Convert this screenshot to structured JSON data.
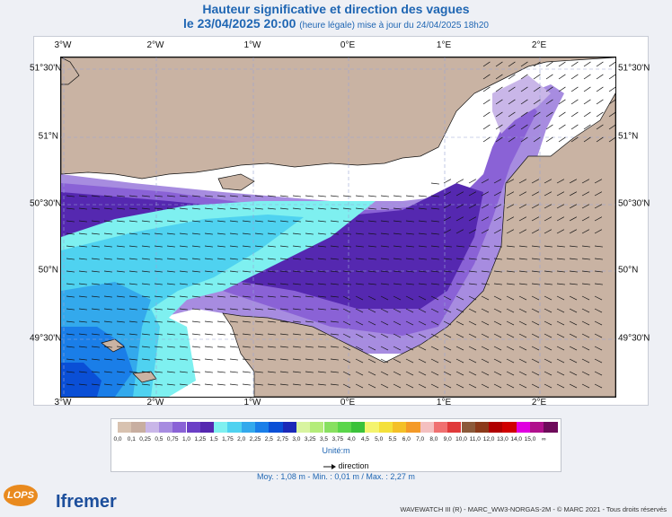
{
  "header": {
    "title": "Hauteur significative et direction des vagues",
    "date_line": "le 23/04/2025 20:00",
    "update_note": "(heure légale) mise à jour du 24/04/2025 18h20"
  },
  "axes": {
    "lon_labels": [
      "3°W",
      "2°W",
      "1°W",
      "0°E",
      "1°E",
      "2°E"
    ],
    "lat_labels": [
      "51°30'N",
      "51°N",
      "50°30'N",
      "50°N",
      "49°30'N"
    ]
  },
  "legend": {
    "labels": [
      "0,0",
      "0,1",
      "0,25",
      "0,5",
      "0,75",
      "1,0",
      "1,25",
      "1,5",
      "1,75",
      "2,0",
      "2,25",
      "2,5",
      "2,75",
      "3,0",
      "3,25",
      "3,5",
      "3,75",
      "4,0",
      "4,5",
      "5,0",
      "5,5",
      "6,0",
      "7,0",
      "8,0",
      "9,0",
      "10,0",
      "11,0",
      "12,0",
      "13,0",
      "14,0",
      "15,0",
      "∞"
    ],
    "colors": [
      "#d8c2b0",
      "#c8aea0",
      "#c9b6e8",
      "#a78ce0",
      "#8a62d6",
      "#6b3fc6",
      "#5528b0",
      "#7ef0f0",
      "#4fd2f0",
      "#33a9ec",
      "#1a7ee8",
      "#0a4fd6",
      "#1b29b8",
      "#d8f4a0",
      "#b4ec7a",
      "#88e060",
      "#5ad64a",
      "#3bc23a",
      "#f4f46e",
      "#f4e03a",
      "#f4c028",
      "#f49a28",
      "#f4c0c0",
      "#f07070",
      "#e03a3a",
      "#8c5a3a",
      "#8c3a1a",
      "#b00000",
      "#d00000",
      "#e000e0",
      "#b0108c",
      "#6e0a5a"
    ],
    "unit": "Unité:m",
    "direction_label": "direction"
  },
  "stats": "Moy. : 1,08 m  -  Min. : 0,01 m / Max. : 2,27 m",
  "credit": "WAVEWATCH III (R) - MARC_WW3-NORGAS-2M - © MARC 2021 - Tous droits réservés",
  "logos": {
    "lops": "LOPS",
    "ifremer": "Ifremer"
  }
}
